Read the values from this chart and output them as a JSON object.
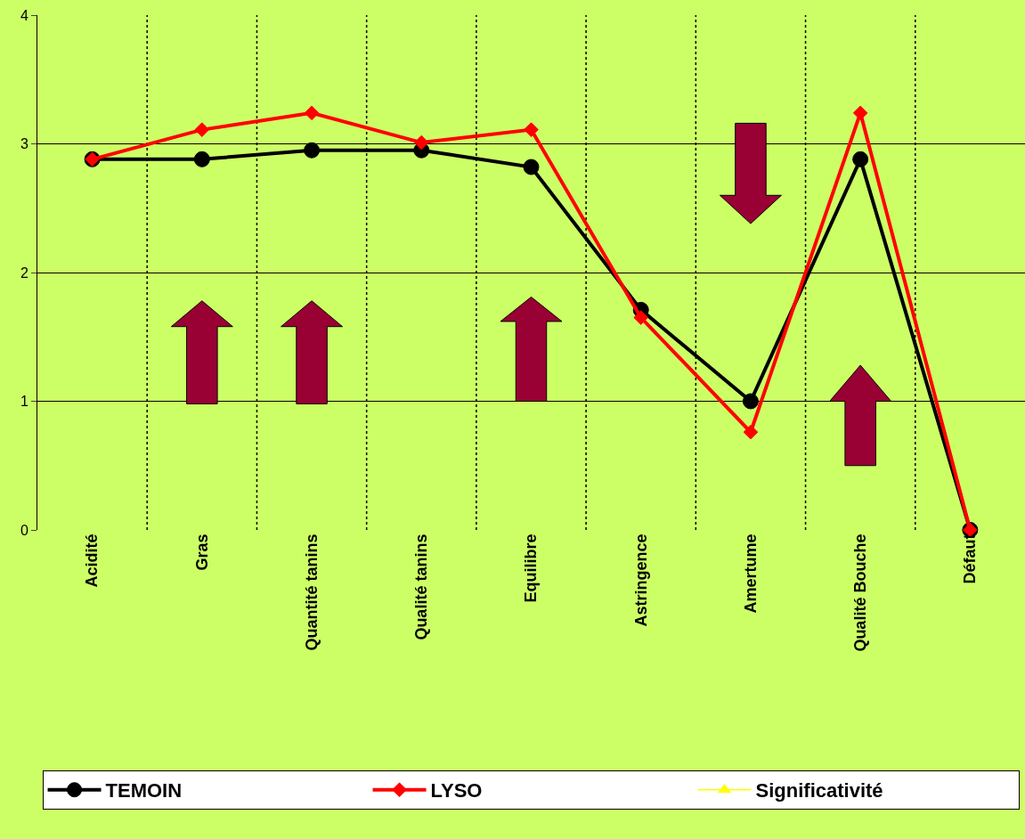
{
  "chart_data": {
    "type": "line",
    "categories": [
      "Acidité",
      "Gras",
      "Quantité tanins",
      "Qualité tanins",
      "Equilibre",
      "Astringence",
      "Amertume",
      "Qualité Bouche",
      "Défaut"
    ],
    "series": [
      {
        "name": "TEMOIN",
        "color": "#000000",
        "marker": "circle",
        "values": [
          2.88,
          2.88,
          2.95,
          2.95,
          2.82,
          1.71,
          1.0,
          2.88,
          0
        ]
      },
      {
        "name": "LYSO",
        "color": "#ff0000",
        "marker": "diamond",
        "values": [
          2.88,
          3.11,
          3.24,
          3.01,
          3.11,
          1.65,
          0.76,
          3.24,
          0
        ]
      },
      {
        "name": "Significativité",
        "color": "#ffff00",
        "marker": "triangle",
        "values": [
          null,
          null,
          null,
          null,
          null,
          null,
          null,
          null,
          null
        ]
      }
    ],
    "ylim": [
      0,
      4
    ],
    "yticks": [
      0,
      1,
      2,
      3,
      4
    ],
    "grid": true,
    "legend": "bottom"
  }
}
